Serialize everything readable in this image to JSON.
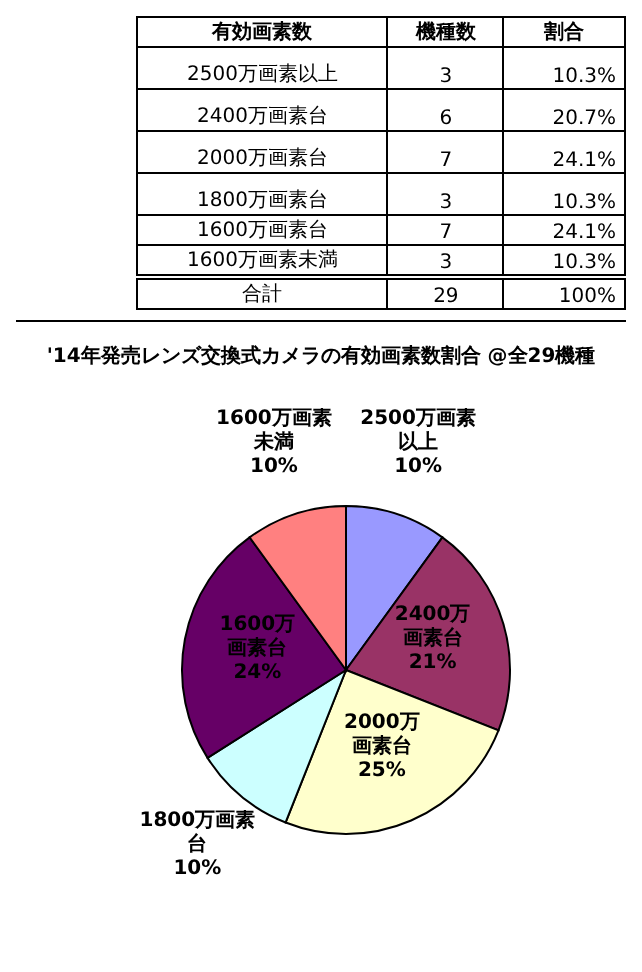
{
  "chart_data": [
    {
      "type": "other",
      "xlabel": "有効画素数",
      "categories": [
        "2500万画素以上",
        "2400万画素台",
        "2000万画素台",
        "1800万画素台",
        "1600万画素台",
        "1600万画素未満",
        "合計"
      ],
      "data_labels": true,
      "series": [
        {
          "name": "機種数",
          "values": [
            3,
            6,
            7,
            3,
            7,
            3,
            29
          ]
        }
      ],
      "annotations": [
        "割合",
        "10.3%",
        "20.7%",
        "24.1%",
        "10.3%",
        "24.1%",
        "10.3%",
        "100%"
      ]
    },
    {
      "type": "pie",
      "title": "'14年発売レンズ交換式カメラの有効画素数割合 @全29機種",
      "categories": [
        "2500万画素以上",
        "2400万画素台",
        "2000万画素台",
        "1800万画素台",
        "1600万画素台",
        "1600万画素未満"
      ],
      "values": [
        10,
        21,
        25,
        10,
        24,
        10
      ],
      "colors": [
        "#9999ff",
        "#993366",
        "#ffffcc",
        "#ccffff",
        "#660066",
        "#ff8080"
      ],
      "value_labels": [
        "10%",
        "21%",
        "25%",
        "10%",
        "24%",
        "10%"
      ]
    }
  ]
}
